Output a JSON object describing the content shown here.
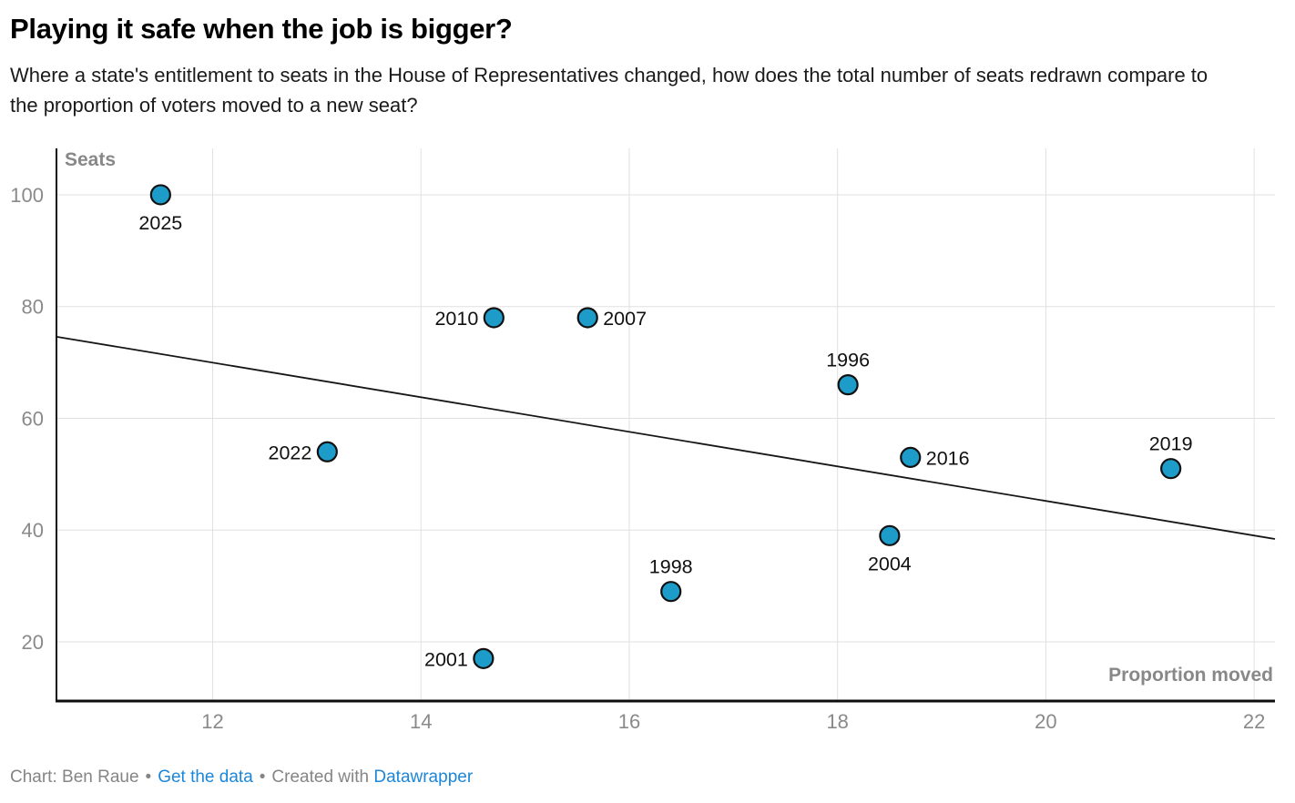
{
  "header": {
    "title": "Playing it safe when the job is bigger?",
    "subtitle": "Where a state's entitlement to seats in the House of Representatives changed, how does the total number of seats redrawn compare to the proportion of voters moved to a new seat?"
  },
  "chart_data": {
    "type": "scatter",
    "title": "Playing it safe when the job is bigger?",
    "xlabel": "Proportion moved",
    "ylabel": "Seats",
    "xlim": [
      10.5,
      22.2
    ],
    "ylim": [
      9.4,
      108.3
    ],
    "x_ticks": [
      12,
      14,
      16,
      18,
      20,
      22
    ],
    "y_ticks": [
      20,
      40,
      60,
      80,
      100
    ],
    "grid": true,
    "legend": "none",
    "points": [
      {
        "label": "2025",
        "x": 11.5,
        "y": 100,
        "label_pos": "below"
      },
      {
        "label": "2010",
        "x": 14.7,
        "y": 78,
        "label_pos": "left"
      },
      {
        "label": "2007",
        "x": 15.6,
        "y": 78,
        "label_pos": "right"
      },
      {
        "label": "1996",
        "x": 18.1,
        "y": 66,
        "label_pos": "above"
      },
      {
        "label": "2022",
        "x": 13.1,
        "y": 54,
        "label_pos": "left"
      },
      {
        "label": "2016",
        "x": 18.7,
        "y": 53,
        "label_pos": "right"
      },
      {
        "label": "2019",
        "x": 21.2,
        "y": 51,
        "label_pos": "above"
      },
      {
        "label": "2004",
        "x": 18.5,
        "y": 39,
        "label_pos": "below"
      },
      {
        "label": "1998",
        "x": 16.4,
        "y": 29,
        "label_pos": "above"
      },
      {
        "label": "2001",
        "x": 14.6,
        "y": 17,
        "label_pos": "left"
      }
    ],
    "trend_line": {
      "x1": 10.5,
      "y1": 74.6,
      "x2": 22.2,
      "y2": 38.4
    },
    "point_color": "#1d9bc9",
    "point_stroke": "#111111",
    "grid_color": "#e0e0e0",
    "tick_color": "#8a8a8a"
  },
  "footer": {
    "credit": "Chart: Ben Raue",
    "bullet": "•",
    "get_data_link": "Get the data",
    "created_with": "Created with",
    "tool_link": "Datawrapper",
    "link_color": "#1c86d8"
  }
}
